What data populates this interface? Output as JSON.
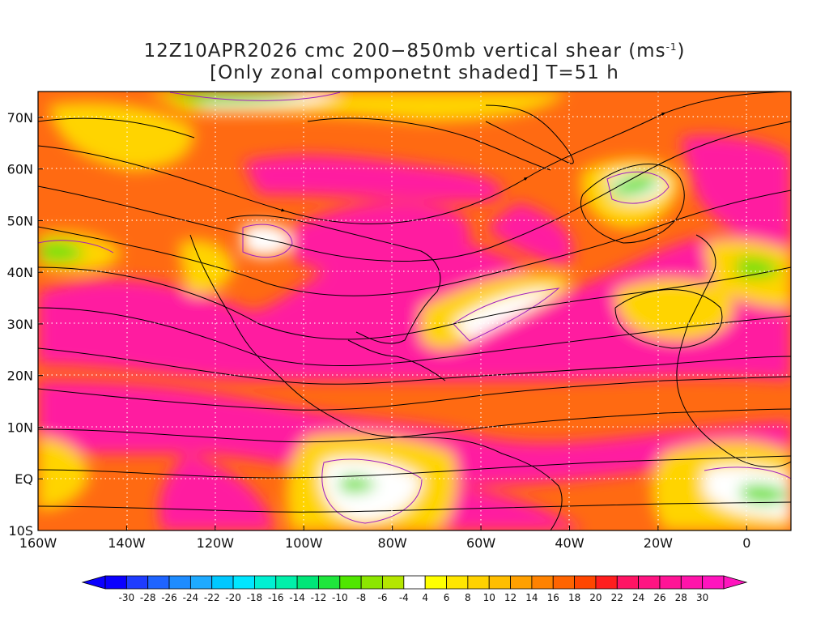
{
  "title": {
    "line1_prefix": "12Z10APR2026 cmc 200−850mb vertical shear (ms",
    "line1_sup": "-1",
    "line1_suffix": ")",
    "line2": "[Only zonal componetnt shaded] T=51 h"
  },
  "map": {
    "projection": "lat-lon",
    "lon_range": [
      -160,
      10
    ],
    "lat_range": [
      -10,
      75
    ],
    "lon_labels": [
      "160W",
      "140W",
      "120W",
      "100W",
      "80W",
      "60W",
      "40W",
      "20W",
      "0"
    ],
    "lon_values": [
      -160,
      -140,
      -120,
      -100,
      -80,
      -60,
      -40,
      -20,
      0
    ],
    "lat_labels": [
      "10S",
      "EQ",
      "10N",
      "20N",
      "30N",
      "40N",
      "50N",
      "60N",
      "70N"
    ],
    "lat_values": [
      -10,
      0,
      10,
      20,
      30,
      40,
      50,
      60,
      70
    ],
    "gridlines": "dotted",
    "overlay": "streamlines",
    "colors": {
      "strong_positive": "#ff1ea0",
      "moderate_positive": "#ff6a12",
      "weak_positive": "#ffd400",
      "near_zero": "#ffffff",
      "negative": "#66e010"
    }
  },
  "colorbar": {
    "labels": [
      "-30",
      "-28",
      "-26",
      "-24",
      "-22",
      "-20",
      "-18",
      "-16",
      "-14",
      "-12",
      "-10",
      "-8",
      "-6",
      "-4",
      "4",
      "6",
      "8",
      "10",
      "12",
      "14",
      "16",
      "18",
      "20",
      "22",
      "24",
      "26",
      "28",
      "30"
    ],
    "colors": [
      "#0a00ff",
      "#1e3cff",
      "#1e64ff",
      "#1e8cff",
      "#1eaaff",
      "#00c8ff",
      "#00e6ff",
      "#00f0d2",
      "#00f0aa",
      "#00e678",
      "#1ee63c",
      "#50e600",
      "#8ce600",
      "#b4e600",
      "#ffffff",
      "#ffff00",
      "#ffe600",
      "#ffd200",
      "#ffbe00",
      "#ffa000",
      "#ff8200",
      "#ff6400",
      "#ff4600",
      "#ff1e1e",
      "#ff1464",
      "#ff1482",
      "#ff1496",
      "#ff14aa",
      "#ff14be"
    ],
    "under_color": "#0a00ff",
    "over_color": "#ff14be"
  }
}
